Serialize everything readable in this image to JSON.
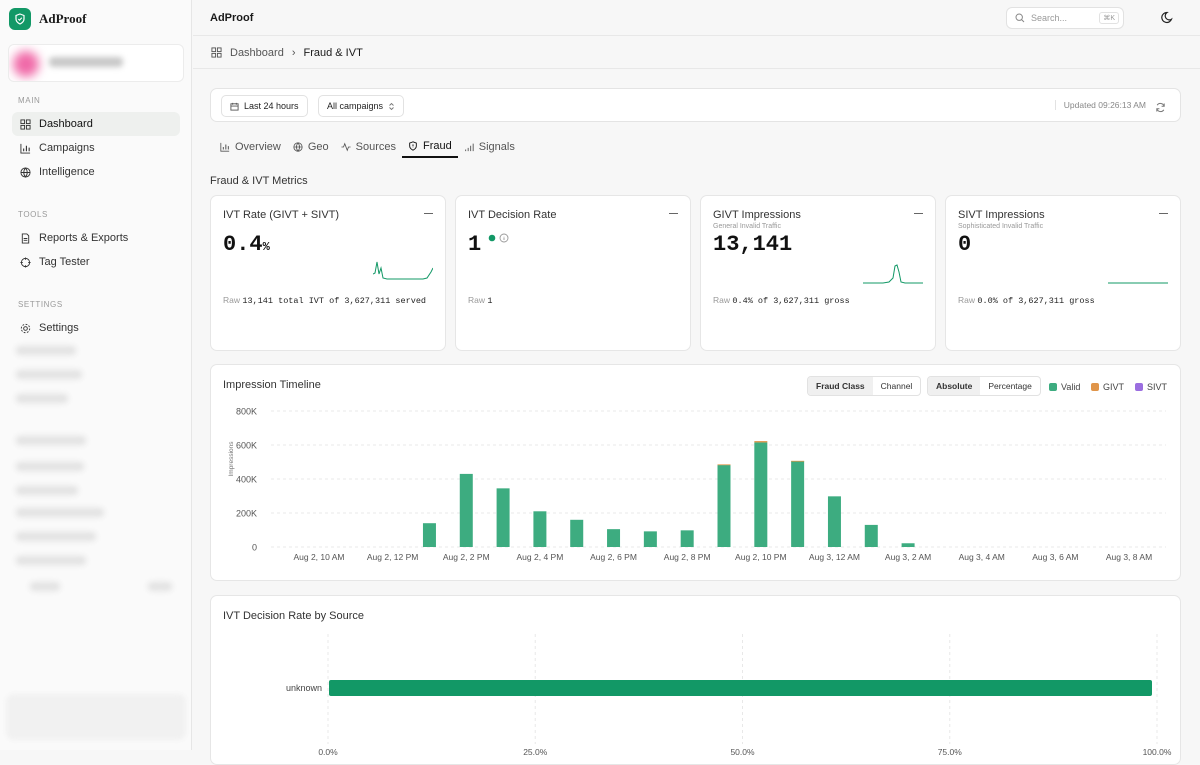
{
  "brand": {
    "name": "AdProof"
  },
  "sidebar": {
    "main_label": "MAIN",
    "main_items": [
      {
        "label": "Dashboard"
      },
      {
        "label": "Campaigns"
      },
      {
        "label": "Intelligence"
      }
    ],
    "tools_label": "TOOLS",
    "tools_items": [
      {
        "label": "Reports & Exports"
      },
      {
        "label": "Tag Tester"
      }
    ],
    "settings_label": "SETTINGS",
    "settings_items": [
      {
        "label": "Settings"
      }
    ]
  },
  "topbar": {
    "title": "AdProof",
    "search_placeholder": "Search...",
    "search_shortcut": "⌘K"
  },
  "breadcrumb": {
    "root": "Dashboard",
    "current": "Fraud & IVT"
  },
  "filters": {
    "range": "Last 24 hours",
    "campaigns": "All campaigns",
    "updated": "Updated 09:26:13 AM"
  },
  "tabs": [
    {
      "label": "Overview"
    },
    {
      "label": "Geo"
    },
    {
      "label": "Sources"
    },
    {
      "label": "Fraud"
    },
    {
      "label": "Signals"
    }
  ],
  "section_title": "Fraud & IVT Metrics",
  "cards": [
    {
      "title": "IVT Rate (GIVT + SIVT)",
      "subtitle": "",
      "value": "0.4",
      "unit": "%",
      "raw_label": "Raw",
      "raw_value": "13,141 total IVT of 3,627,311 served"
    },
    {
      "title": "IVT Decision Rate",
      "subtitle": "",
      "value": "1",
      "unit": "",
      "raw_label": "Raw",
      "raw_value": "1"
    },
    {
      "title": "GIVT Impressions",
      "subtitle": "General Invalid Traffic",
      "value": "13,141",
      "unit": "",
      "raw_label": "Raw",
      "raw_value": "0.4% of 3,627,311 gross"
    },
    {
      "title": "SIVT Impressions",
      "subtitle": "Sophisticated Invalid Traffic",
      "value": "0",
      "unit": "",
      "raw_label": "Raw",
      "raw_value": "0.0% of 3,627,311 gross"
    }
  ],
  "colors": {
    "accent": "#129866",
    "valid": "#3dac80",
    "givt": "#e0954a",
    "sivt": "#9b6ee0"
  },
  "timeline": {
    "title": "Impression Timeline",
    "seg1": [
      "Fraud Class",
      "Channel"
    ],
    "seg2": [
      "Absolute",
      "Percentage"
    ],
    "legend": [
      "Valid",
      "GIVT",
      "SIVT"
    ]
  },
  "decision_panel": {
    "title": "IVT Decision Rate by Source"
  },
  "chart_data": [
    {
      "type": "bar",
      "title": "Impression Timeline",
      "ylabel": "Impressions",
      "ylim": [
        0,
        800000
      ],
      "yticks": [
        "800K",
        "600K",
        "400K",
        "200K",
        "0"
      ],
      "xtick_labels": [
        "Aug 2, 10 AM",
        "Aug 2, 12 PM",
        "Aug 2, 2 PM",
        "Aug 2, 4 PM",
        "Aug 2, 6 PM",
        "Aug 2, 8 PM",
        "Aug 2, 10 PM",
        "Aug 3, 12 AM",
        "Aug 3, 2 AM",
        "Aug 3, 4 AM",
        "Aug 3, 6 AM",
        "Aug 3, 8 AM"
      ],
      "categories": [
        "Aug 2, 1 PM",
        "Aug 2, 2 PM",
        "Aug 2, 3 PM",
        "Aug 2, 4 PM",
        "Aug 2, 5 PM",
        "Aug 2, 6 PM",
        "Aug 2, 7 PM",
        "Aug 2, 8 PM",
        "Aug 2, 9 PM",
        "Aug 2, 10 PM",
        "Aug 2, 11 PM",
        "Aug 3, 12 AM",
        "Aug 3, 1 AM",
        "Aug 3, 2 AM"
      ],
      "series": [
        {
          "name": "Valid",
          "values": [
            140000,
            430000,
            345000,
            210000,
            160000,
            105000,
            92000,
            98000,
            482000,
            615000,
            505000,
            298000,
            130000,
            22000
          ]
        },
        {
          "name": "GIVT",
          "values": [
            0,
            0,
            0,
            0,
            0,
            0,
            0,
            0,
            4000,
            8000,
            2000,
            0,
            0,
            0
          ]
        },
        {
          "name": "SIVT",
          "values": [
            0,
            0,
            0,
            0,
            0,
            0,
            0,
            0,
            0,
            0,
            0,
            0,
            0,
            0
          ]
        }
      ],
      "stacked": true,
      "grid": true,
      "legend": "top-right"
    },
    {
      "type": "bar",
      "orientation": "horizontal",
      "title": "IVT Decision Rate by Source",
      "categories": [
        "unknown"
      ],
      "values": [
        100
      ],
      "xlim": [
        0,
        100
      ],
      "xticks": [
        "0.0%",
        "25.0%",
        "50.0%",
        "75.0%",
        "100.0%"
      ]
    }
  ]
}
